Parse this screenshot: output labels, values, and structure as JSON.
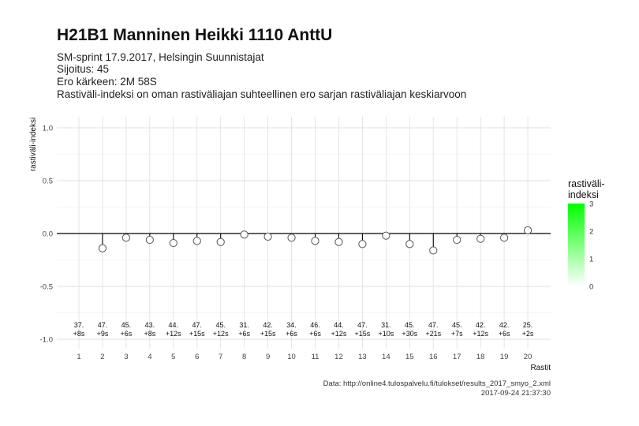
{
  "title": "H21B1 Manninen Heikki 1110 AnttU",
  "subtitle_lines": [
    "SM-sprint 17.9.2017, Helsingin Suunnistajat",
    "Sijoitus: 45",
    "Ero kärkeen: 2M 58S",
    "Rastiväli-indeksi on oman rastiväliajan suhteellinen ero sarjan rastiväliajan keskiarvoon"
  ],
  "footer": {
    "source": "Data: http://online4.tulospalvelu.fi/tulokset/results_2017_smyo_2.xml",
    "timestamp": "2017-09-24 21:37:30"
  },
  "legend": {
    "title_line1": "rastiväli-",
    "title_line2": "indeksi",
    "ticks": [
      "3",
      "2",
      "1",
      "0"
    ],
    "color_low": "#ffffff",
    "color_high": "#00ff00"
  },
  "chart_data": {
    "type": "scatter",
    "xlabel": "Rastit",
    "ylabel": "rastiväli-indeksi",
    "ylim": [
      -1.1,
      1.1
    ],
    "yticks": [
      "1.0",
      "0.5",
      "0.0",
      "-0.5",
      "-1.0"
    ],
    "ytick_values": [
      1.0,
      0.5,
      0.0,
      -0.5,
      -1.0
    ],
    "grid": true,
    "x": [
      1,
      2,
      3,
      4,
      5,
      6,
      7,
      8,
      9,
      10,
      11,
      12,
      13,
      14,
      15,
      16,
      17,
      18,
      19,
      20
    ],
    "y": [
      null,
      -0.14,
      -0.04,
      -0.06,
      -0.09,
      -0.07,
      -0.08,
      -0.01,
      -0.03,
      -0.04,
      -0.07,
      -0.08,
      -0.1,
      -0.02,
      -0.1,
      -0.16,
      -0.06,
      -0.05,
      -0.04,
      0.03
    ],
    "label_rank": [
      "37.",
      "47.",
      "45.",
      "43.",
      "44.",
      "47.",
      "45.",
      "31.",
      "42.",
      "34.",
      "46.",
      "44.",
      "47.",
      "31.",
      "45.",
      "47.",
      "45.",
      "42.",
      "42.",
      "25."
    ],
    "label_diff": [
      "+8s",
      "+9s",
      "+6s",
      "+8s",
      "+12s",
      "+15s",
      "+12s",
      "+6s",
      "+15s",
      "+6s",
      "+6s",
      "+12s",
      "+15s",
      "+10s",
      "+30s",
      "+21s",
      "+7s",
      "+12s",
      "+6s",
      "+2s"
    ]
  }
}
